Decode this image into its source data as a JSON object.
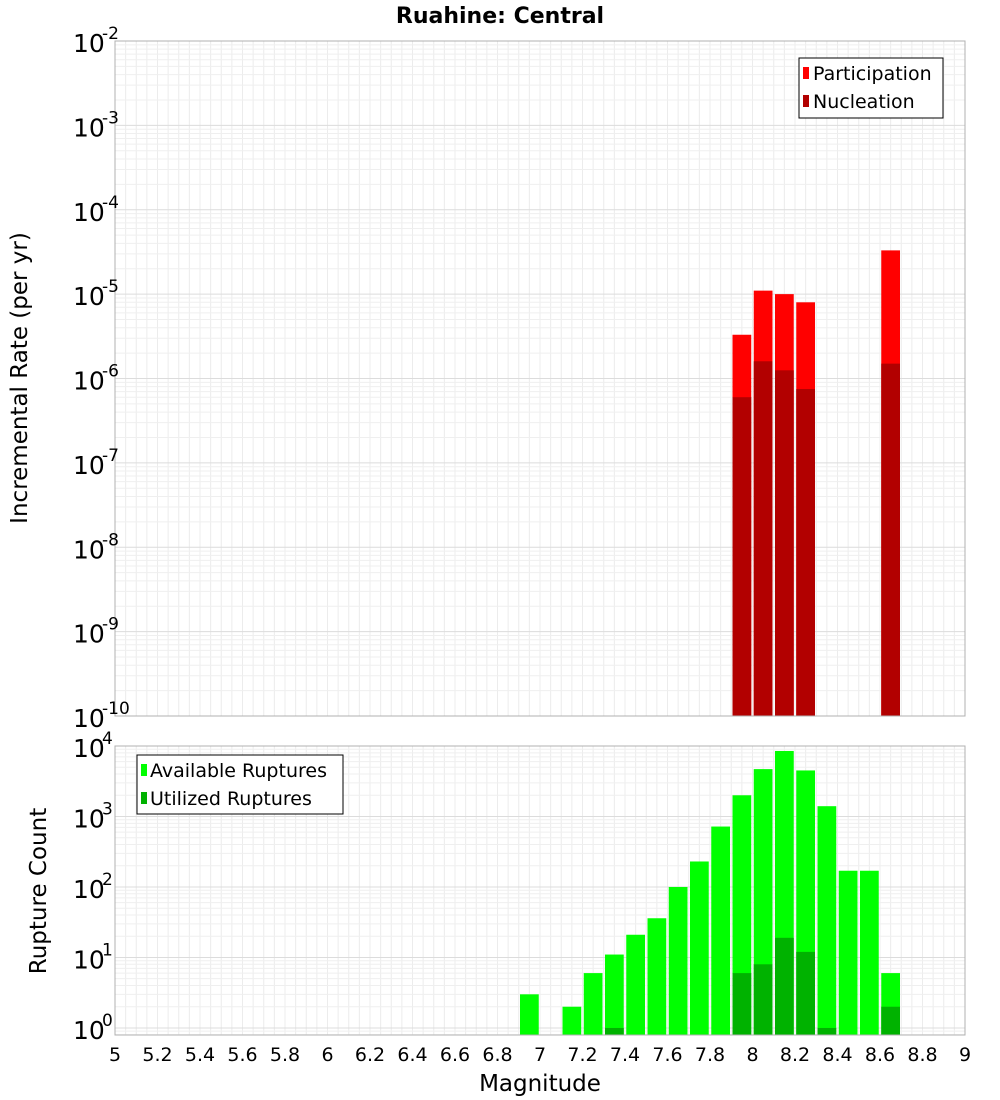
{
  "chart_data": [
    {
      "type": "bar",
      "panel": "top",
      "title": "Ruahine: Central",
      "ylabel": "Incremental Rate (per yr)",
      "xlabel": "",
      "yscale": "log",
      "ylim_exp": [
        -10,
        -2
      ],
      "ytick_exponents": [
        "-10",
        "-9",
        "-8",
        "-7",
        "-6",
        "-5",
        "-4",
        "-3",
        "-2"
      ],
      "xlim": [
        5,
        9
      ],
      "legend": {
        "position": "top-right",
        "entries": [
          {
            "name": "Participation",
            "color": "#ff0000"
          },
          {
            "name": "Nucleation",
            "color": "#b20000"
          }
        ]
      },
      "series": [
        {
          "name": "Participation",
          "color": "#ff0000",
          "x": [
            7.95,
            8.05,
            8.15,
            8.25,
            8.65
          ],
          "values": [
            3.3e-06,
            1.1e-05,
            1e-05,
            8e-06,
            3.3e-05
          ]
        },
        {
          "name": "Nucleation",
          "color": "#b20000",
          "x": [
            7.95,
            8.05,
            8.15,
            8.25,
            8.65
          ],
          "values": [
            6e-07,
            1.6e-06,
            1.25e-06,
            7.5e-07,
            1.5e-06
          ]
        }
      ]
    },
    {
      "type": "bar",
      "panel": "bottom",
      "title": "",
      "ylabel": "Rupture Count",
      "xlabel": "Magnitude",
      "yscale": "log",
      "ylim_exp": [
        -0.1,
        4
      ],
      "ytick_exponents": [
        "0",
        "1",
        "2",
        "3",
        "4"
      ],
      "xlim": [
        5,
        9
      ],
      "xticks": [
        "5",
        "5.2",
        "5.4",
        "5.6",
        "5.8",
        "6",
        "6.2",
        "6.4",
        "6.6",
        "6.8",
        "7",
        "7.2",
        "7.4",
        "7.6",
        "7.8",
        "8",
        "8.2",
        "8.4",
        "8.6",
        "8.8",
        "9"
      ],
      "legend": {
        "position": "top-left",
        "entries": [
          {
            "name": "Available Ruptures",
            "color": "#00ff00"
          },
          {
            "name": "Utilized Ruptures",
            "color": "#00b200"
          }
        ]
      },
      "series": [
        {
          "name": "Available Ruptures",
          "color": "#00ff00",
          "x": [
            6.95,
            7.15,
            7.25,
            7.35,
            7.45,
            7.55,
            7.65,
            7.75,
            7.85,
            7.95,
            8.05,
            8.15,
            8.25,
            8.35,
            8.45,
            8.55,
            8.65
          ],
          "values": [
            3,
            2,
            6,
            11,
            21,
            36,
            100,
            230,
            720,
            2000,
            4700,
            8500,
            4500,
            1400,
            170,
            170,
            6
          ]
        },
        {
          "name": "Utilized Ruptures",
          "color": "#00b200",
          "x": [
            7.35,
            7.95,
            8.05,
            8.15,
            8.25,
            8.35,
            8.65
          ],
          "values": [
            1,
            6,
            8,
            19,
            12,
            1,
            2
          ]
        }
      ]
    }
  ]
}
